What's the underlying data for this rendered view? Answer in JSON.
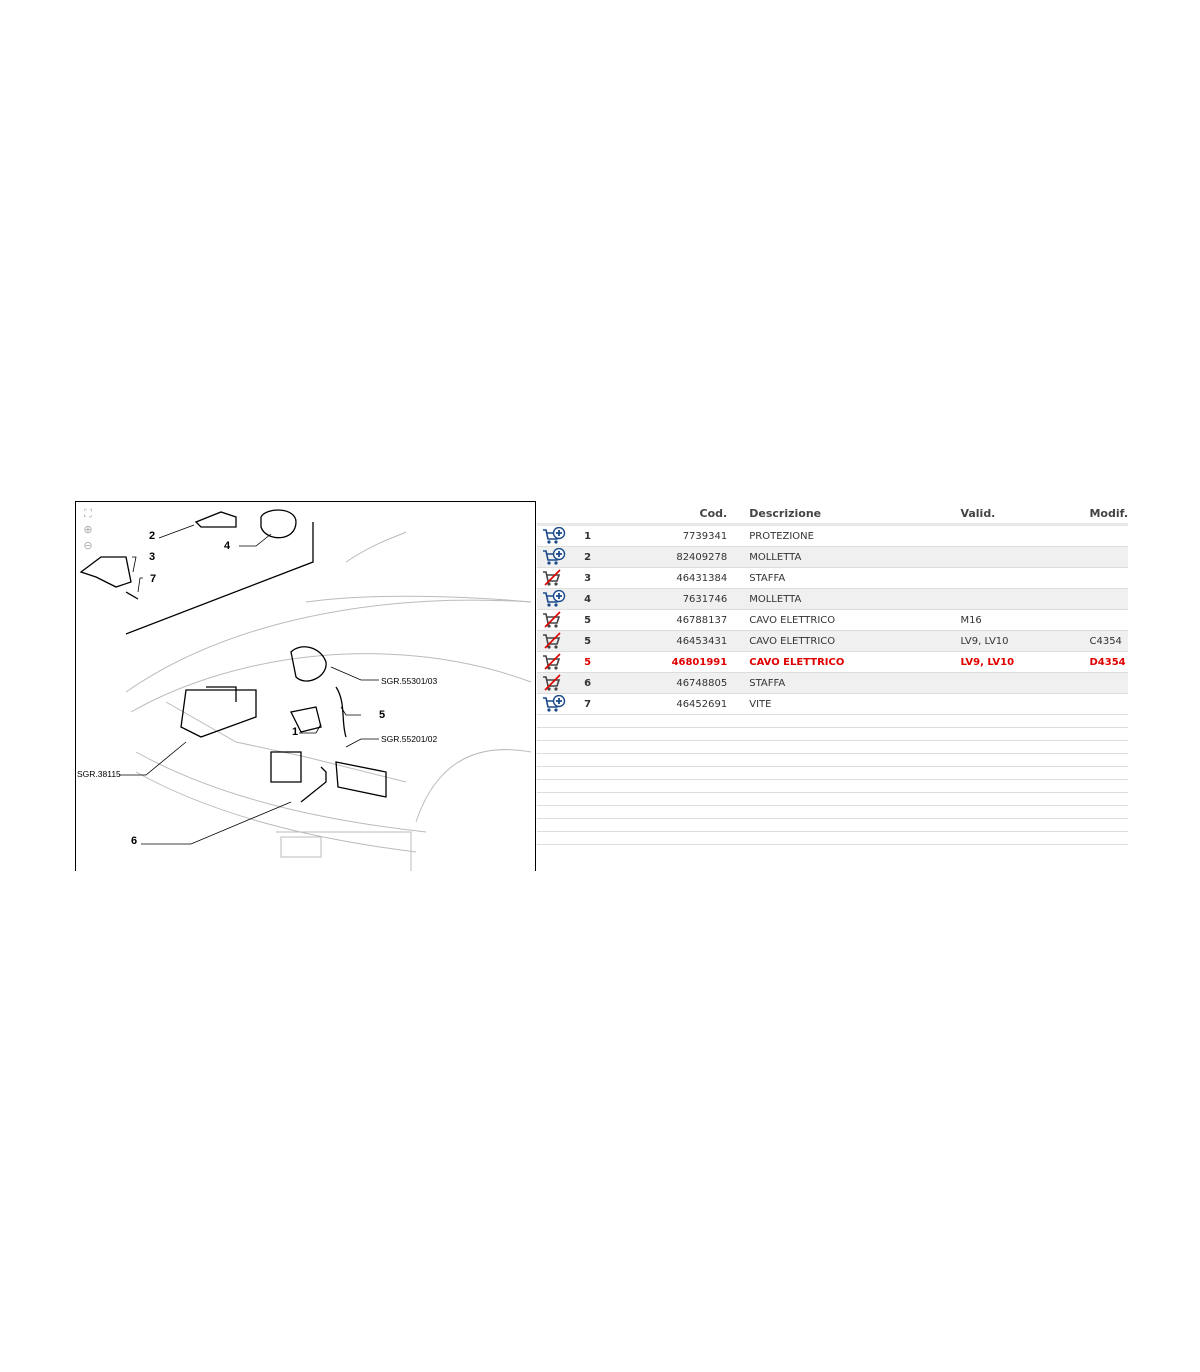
{
  "diagram": {
    "callouts": [
      "1",
      "2",
      "3",
      "4",
      "5",
      "6",
      "7"
    ],
    "references": [
      "SGR.55301/03",
      "SGR.55201/02",
      "SGR.38115"
    ],
    "tools": [
      "fit-icon",
      "zoom-in-icon",
      "zoom-out-icon"
    ]
  },
  "table": {
    "headers": {
      "icon": "",
      "num": "",
      "cod": "Cod.",
      "desc": "Descrizione",
      "valid": "Valid.",
      "modif": "Modif."
    },
    "rows": [
      {
        "cart": "cart-add",
        "num": "1",
        "cod": "7739341",
        "desc": "PROTEZIONE",
        "valid": "",
        "modif": ""
      },
      {
        "cart": "cart-add",
        "num": "2",
        "cod": "82409278",
        "desc": "MOLLETTA",
        "valid": "",
        "modif": ""
      },
      {
        "cart": "cart-unavailable",
        "num": "3",
        "cod": "46431384",
        "desc": "STAFFA",
        "valid": "",
        "modif": ""
      },
      {
        "cart": "cart-add",
        "num": "4",
        "cod": "7631746",
        "desc": "MOLLETTA",
        "valid": "",
        "modif": ""
      },
      {
        "cart": "cart-unavailable",
        "num": "5",
        "cod": "46788137",
        "desc": "CAVO ELETTRICO",
        "valid": "M16",
        "modif": ""
      },
      {
        "cart": "cart-unavailable",
        "num": "5",
        "cod": "46453431",
        "desc": "CAVO ELETTRICO",
        "valid": "LV9, LV10",
        "modif": "C4354"
      },
      {
        "cart": "cart-unavailable",
        "num": "5",
        "cod": "46801991",
        "desc": "CAVO ELETTRICO",
        "valid": "LV9, LV10",
        "modif": "D4354",
        "selected": true
      },
      {
        "cart": "cart-unavailable",
        "num": "6",
        "cod": "46748805",
        "desc": "STAFFA",
        "valid": "",
        "modif": ""
      },
      {
        "cart": "cart-add",
        "num": "7",
        "cod": "46452691",
        "desc": "VITE",
        "valid": "",
        "modif": ""
      }
    ],
    "empty_rows": 10
  },
  "colors": {
    "selected": "#e00000",
    "cart_add": "#1a4a8a",
    "cart_unavailable": "#c00000"
  }
}
